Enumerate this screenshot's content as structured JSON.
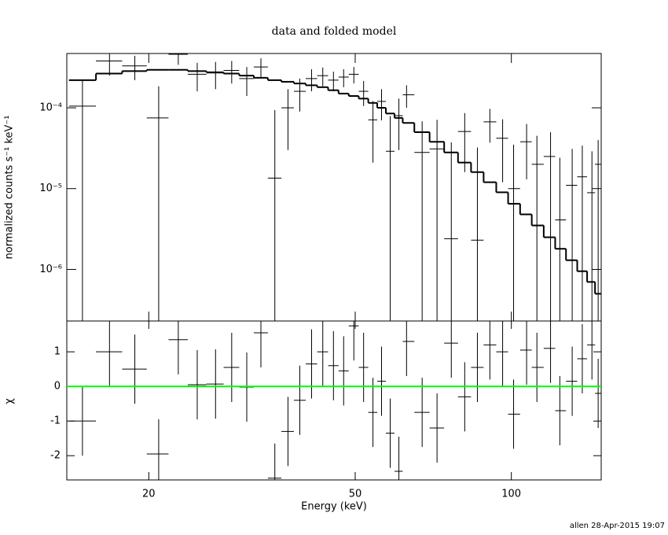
{
  "title": "data and folded model",
  "footer": "allen 28-Apr-2015 19:07",
  "chart_data": [
    {
      "type": "spectrum",
      "ylabel": "normalized counts s⁻¹ keV⁻¹",
      "log_x": true,
      "log_y": true,
      "xlim": [
        13.9,
        149
      ],
      "ylim": [
        2.3e-07,
        0.00047
      ],
      "yticks": [
        {
          "value": 0.0001,
          "label": "10⁻⁴"
        },
        {
          "value": 1e-05,
          "label": "10⁻⁵"
        },
        {
          "value": 1e-06,
          "label": "10⁻⁶"
        }
      ],
      "x": [
        14.9,
        16.8,
        18.8,
        20.9,
        22.8,
        24.8,
        26.9,
        28.9,
        30.9,
        32.9,
        35.0,
        37.1,
        39.1,
        41.2,
        43.3,
        45.4,
        47.5,
        49.7,
        51.9,
        54.1,
        56.2,
        58.4,
        60.7,
        62.8,
        67.3,
        71.9,
        76.6,
        81.3,
        86.0,
        90.9,
        96.2,
        101,
        107,
        112,
        119,
        124,
        131,
        137,
        143,
        147
      ],
      "data": {
        "color": "#000000",
        "values": [
          0.000105,
          0.00038,
          0.00033,
          7.5e-05,
          0.00046,
          0.00026,
          0.00027,
          0.00029,
          0.00023,
          0.00032,
          1.35e-05,
          0.0001,
          0.00016,
          0.00023,
          0.00025,
          0.00022,
          0.00024,
          0.00026,
          0.00016,
          7.1e-05,
          0.00012,
          2.9e-05,
          8e-05,
          0.000145,
          2.8e-05,
          3.1e-05,
          2.4e-06,
          5.1e-05,
          2.3e-06,
          6.7e-05,
          4.2e-05,
          1e-05,
          3.8e-05,
          2e-05,
          2.5e-05,
          4.1e-06,
          1.1e-05,
          1.4e-05,
          8.9e-06,
          2e-05
        ],
        "errors": [
          0.00012,
          0.00013,
          0.00011,
          0.00011,
          0.00012,
          0.0001,
          0.0001,
          9e-05,
          9e-05,
          9e-05,
          8e-05,
          7e-05,
          7e-05,
          7e-05,
          6.5e-05,
          6e-05,
          6e-05,
          6e-05,
          5.5e-05,
          5e-05,
          5e-05,
          5e-05,
          5e-05,
          4.5e-05,
          4e-05,
          4e-05,
          3.5e-05,
          3.5e-05,
          3e-05,
          3e-05,
          3e-05,
          2.5e-05,
          2.5e-05,
          2.5e-05,
          2.5e-05,
          2e-05,
          2e-05,
          2e-05,
          2e-05,
          2e-05
        ]
      },
      "model": {
        "color": "#000000",
        "values": [
          0.00022,
          0.000265,
          0.000285,
          0.000295,
          0.000295,
          0.000285,
          0.000275,
          0.000265,
          0.00025,
          0.000235,
          0.00022,
          0.00021,
          0.0002,
          0.00019,
          0.00018,
          0.000165,
          0.00015,
          0.00014,
          0.00013,
          0.000115,
          0.0001,
          8.5e-05,
          7.5e-05,
          6.5e-05,
          5e-05,
          3.8e-05,
          2.8e-05,
          2.1e-05,
          1.6e-05,
          1.2e-05,
          9e-06,
          6.5e-06,
          4.8e-06,
          3.5e-06,
          2.5e-06,
          1.8e-06,
          1.3e-06,
          9.5e-07,
          7e-07,
          5e-07
        ]
      }
    },
    {
      "type": "residuals",
      "xlabel": "Energy (keV)",
      "ylabel": "χ",
      "xticks": [
        20,
        50,
        100
      ],
      "ylim": [
        -2.7,
        1.89
      ],
      "yticks": [
        -2,
        -1,
        0,
        1
      ],
      "zero_line_color": "#00ff00",
      "color": "#000000",
      "yerr": 1,
      "values": [
        -1.0,
        1.0,
        0.5,
        -1.95,
        1.35,
        0.05,
        0.07,
        0.55,
        -0.02,
        1.55,
        -2.65,
        -1.3,
        -0.4,
        0.65,
        1.0,
        0.6,
        0.45,
        1.75,
        0.55,
        -0.75,
        0.15,
        -1.35,
        -2.45,
        1.3,
        -0.75,
        -1.2,
        1.25,
        -0.3,
        0.55,
        1.2,
        1.0,
        -0.8,
        1.05,
        0.55,
        1.1,
        -0.7,
        0.15,
        0.8,
        1.2,
        -0.2
      ]
    }
  ]
}
